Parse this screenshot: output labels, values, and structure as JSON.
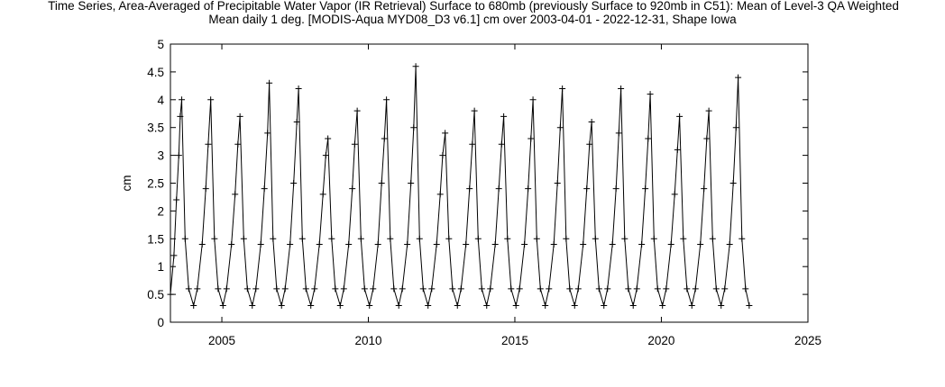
{
  "chart_data": {
    "type": "line",
    "title": "Time Series, Area-Averaged of Precipitable Water Vapor (IR Retrieval) Surface to 680mb (previously Surface to 920mb in C51): Mean of Level-3 QA Weighted",
    "subtitle": "Mean daily 1 deg. [MODIS-Aqua MYD08_D3 v6.1] cm over 2003-04-01 - 2022-12-31, Shape Iowa",
    "xlabel": "",
    "ylabel": "cm",
    "x_axis_type": "date",
    "xlim": [
      "2003-04-01",
      "2025-01-01"
    ],
    "ylim": [
      0,
      5
    ],
    "x_ticks": [
      "2005",
      "2010",
      "2015",
      "2020",
      "2025"
    ],
    "y_ticks": [
      "0",
      "0.5",
      "1",
      "1.5",
      "2",
      "2.5",
      "3",
      "3.5",
      "4",
      "4.5",
      "5"
    ],
    "marker": "plus",
    "grid": false,
    "legend": "none",
    "line_color": "#000000",
    "series": [
      {
        "x": [
          "2003-04-01",
          "2003-05-15",
          "2003-06-15",
          "2003-07-15",
          "2003-08-01",
          "2003-08-20",
          "2003-10-01",
          "2003-11-15",
          "2004-01-15",
          "2004-03-01",
          "2004-05-01",
          "2004-06-15",
          "2004-07-15",
          "2004-08-15",
          "2004-10-01",
          "2004-11-15",
          "2005-01-15",
          "2005-03-01",
          "2005-05-01",
          "2005-06-15",
          "2005-07-20",
          "2005-08-15",
          "2005-10-01",
          "2005-11-15",
          "2006-01-15",
          "2006-03-01",
          "2006-05-01",
          "2006-06-15",
          "2006-07-25",
          "2006-08-15",
          "2006-10-01",
          "2006-11-15",
          "2007-01-15",
          "2007-03-01",
          "2007-05-01",
          "2007-06-15",
          "2007-07-25",
          "2007-08-15",
          "2007-10-01",
          "2007-11-15",
          "2008-01-15",
          "2008-03-01",
          "2008-05-01",
          "2008-06-15",
          "2008-07-20",
          "2008-08-15",
          "2008-10-01",
          "2008-11-15",
          "2009-01-15",
          "2009-03-01",
          "2009-05-01",
          "2009-06-15",
          "2009-07-15",
          "2009-08-15",
          "2009-10-01",
          "2009-11-15",
          "2010-01-15",
          "2010-03-01",
          "2010-05-01",
          "2010-06-15",
          "2010-07-20",
          "2010-08-15",
          "2010-10-01",
          "2010-11-15",
          "2011-01-15",
          "2011-03-01",
          "2011-05-01",
          "2011-06-15",
          "2011-07-20",
          "2011-08-15",
          "2011-10-01",
          "2011-11-15",
          "2012-01-15",
          "2012-03-01",
          "2012-05-01",
          "2012-06-15",
          "2012-07-15",
          "2012-08-15",
          "2012-10-01",
          "2012-11-15",
          "2013-01-15",
          "2013-03-01",
          "2013-05-01",
          "2013-06-15",
          "2013-07-20",
          "2013-08-15",
          "2013-10-01",
          "2013-11-15",
          "2014-01-15",
          "2014-03-01",
          "2014-05-01",
          "2014-06-15",
          "2014-07-20",
          "2014-08-15",
          "2014-10-01",
          "2014-11-15",
          "2015-01-15",
          "2015-03-01",
          "2015-05-01",
          "2015-06-15",
          "2015-07-20",
          "2015-08-15",
          "2015-10-01",
          "2015-11-15",
          "2016-01-15",
          "2016-03-01",
          "2016-05-01",
          "2016-06-15",
          "2016-07-20",
          "2016-08-15",
          "2016-10-01",
          "2016-11-15",
          "2017-01-15",
          "2017-03-01",
          "2017-05-01",
          "2017-06-15",
          "2017-07-20",
          "2017-08-15",
          "2017-10-01",
          "2017-11-15",
          "2018-01-15",
          "2018-03-01",
          "2018-05-01",
          "2018-06-15",
          "2018-07-20",
          "2018-08-15",
          "2018-10-01",
          "2018-11-15",
          "2019-01-15",
          "2019-03-01",
          "2019-05-01",
          "2019-06-15",
          "2019-07-20",
          "2019-08-15",
          "2019-10-01",
          "2019-11-15",
          "2020-01-15",
          "2020-03-01",
          "2020-05-01",
          "2020-06-15",
          "2020-07-20",
          "2020-08-15",
          "2020-10-01",
          "2020-11-15",
          "2021-01-15",
          "2021-03-01",
          "2021-05-01",
          "2021-06-15",
          "2021-07-20",
          "2021-08-15",
          "2021-10-01",
          "2021-11-15",
          "2022-01-15",
          "2022-03-01",
          "2022-05-01",
          "2022-06-15",
          "2022-07-20",
          "2022-08-15",
          "2022-10-01",
          "2022-11-15",
          "2022-12-31"
        ],
        "y": [
          0.5,
          1.2,
          2.2,
          3.0,
          3.7,
          4.0,
          1.5,
          0.6,
          0.3,
          0.6,
          1.4,
          2.4,
          3.2,
          4.0,
          1.5,
          0.6,
          0.3,
          0.6,
          1.4,
          2.3,
          3.2,
          3.7,
          1.5,
          0.6,
          0.3,
          0.6,
          1.4,
          2.4,
          3.4,
          4.3,
          1.5,
          0.6,
          0.3,
          0.6,
          1.4,
          2.5,
          3.6,
          4.2,
          1.5,
          0.6,
          0.3,
          0.6,
          1.4,
          2.3,
          3.0,
          3.3,
          1.5,
          0.6,
          0.3,
          0.6,
          1.4,
          2.4,
          3.2,
          3.8,
          1.5,
          0.6,
          0.3,
          0.6,
          1.4,
          2.5,
          3.3,
          4.0,
          1.5,
          0.6,
          0.3,
          0.6,
          1.4,
          2.5,
          3.5,
          4.6,
          1.5,
          0.6,
          0.3,
          0.6,
          1.4,
          2.3,
          3.0,
          3.4,
          1.5,
          0.6,
          0.3,
          0.6,
          1.4,
          2.4,
          3.2,
          3.8,
          1.5,
          0.6,
          0.3,
          0.6,
          1.4,
          2.4,
          3.2,
          3.7,
          1.5,
          0.6,
          0.3,
          0.6,
          1.4,
          2.4,
          3.3,
          4.0,
          1.5,
          0.6,
          0.3,
          0.6,
          1.4,
          2.5,
          3.5,
          4.2,
          1.5,
          0.6,
          0.3,
          0.6,
          1.4,
          2.4,
          3.2,
          3.6,
          1.5,
          0.6,
          0.3,
          0.6,
          1.4,
          2.4,
          3.4,
          4.2,
          1.5,
          0.6,
          0.3,
          0.6,
          1.4,
          2.4,
          3.3,
          4.1,
          1.5,
          0.6,
          0.3,
          0.6,
          1.4,
          2.3,
          3.1,
          3.7,
          1.5,
          0.6,
          0.3,
          0.6,
          1.4,
          2.4,
          3.3,
          3.8,
          1.5,
          0.6,
          0.3,
          0.6,
          1.4,
          2.5,
          3.5,
          4.4,
          1.5,
          0.6,
          0.3
        ]
      }
    ]
  }
}
